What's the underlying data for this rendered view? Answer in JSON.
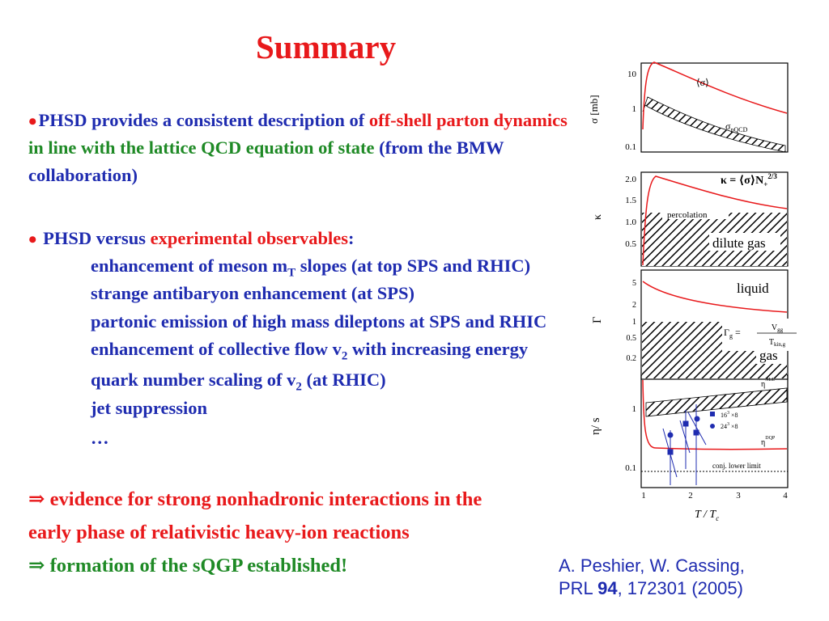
{
  "title": "Summary",
  "point1": {
    "bullet": "•",
    "part1": "PHSD provides a consistent description of ",
    "part2": "off-shell parton dynamics",
    "line2a": "in line with the lattice QCD equation of state ",
    "line2b": "(from the BMW",
    "line3": "collaboration)"
  },
  "point2": {
    "bullet": "•",
    "part1": " PHSD versus ",
    "part2": "experimental observables",
    "part3": ":",
    "items": [
      {
        "text": "enhancement of meson m",
        "sub": "T",
        "text2": " slopes (at top SPS and RHIC)"
      },
      {
        "text": "strange antibaryon enhancement (at SPS)"
      },
      {
        "text": "partonic emission of high mass dileptons at SPS and RHIC"
      },
      {
        "text": "enhancement of collective flow v",
        "sub": "2",
        "text2": " with increasing energy"
      },
      {
        "text": "quark number scaling of v",
        "sub": "2",
        "text2": " (at RHIC)"
      },
      {
        "text": "jet suppression"
      },
      {
        "text": "…"
      }
    ]
  },
  "conclusions": {
    "line1": "⇒ evidence for strong nonhadronic interactions in the",
    "line2": "early phase of relativistic heavy-ion reactions",
    "line3": "⇒ formation of the sQGP established!"
  },
  "citation": {
    "line1": "A. Peshier, W. Cassing,",
    "prl": "PRL ",
    "volume": "94",
    "rest": ", 172301 (2005)"
  },
  "figure": {
    "panel1": {
      "ylabel": "σ  [mb]",
      "ticks": [
        "10",
        "1",
        "0.1"
      ],
      "curve_label": "⟨σ⟩",
      "band_label": "σ",
      "band_sub": "pQCD"
    },
    "panel2": {
      "ylabel": "κ",
      "ticks": [
        "2.0",
        "1.5",
        "1.0",
        "0.5"
      ],
      "formula": "κ = ⟨σ⟩N",
      "formula_sub": "+",
      "formula_sup": "2/3",
      "percolation": "percolation",
      "dilute_gas": "dilute gas"
    },
    "panel3": {
      "ylabel": "Γ",
      "ticks": [
        "5",
        "2",
        "1",
        "0.5",
        "0.2"
      ],
      "liquid": "liquid",
      "gas": "gas",
      "formula_lhs": "Γ",
      "formula_lhs_sub": "g",
      "formula_eq": " = ",
      "num": "V",
      "num_sub": "gg",
      "den": "T",
      "den_sub": "kin,g"
    },
    "panel4": {
      "ylabel": "η/ s",
      "ticks": [
        "1",
        "0.1"
      ],
      "nll": "η",
      "nll_sup": "NLL",
      "dqp": "η",
      "dqp_sup": "DQP",
      "legend1": "16",
      "legend1_sup": "3",
      "legend1_rest": " ×8",
      "legend2": "24",
      "legend2_sup": "3",
      "legend2_rest": " ×8",
      "lower_limit": "conj. lower limit"
    },
    "xticks": [
      "1",
      "2",
      "3",
      "4"
    ],
    "xlabel": "T / T",
    "xlabel_sub": "c",
    "colors": {
      "curve": "#e8191b",
      "points": "#1f2cb0",
      "hatch": "#000000"
    }
  }
}
